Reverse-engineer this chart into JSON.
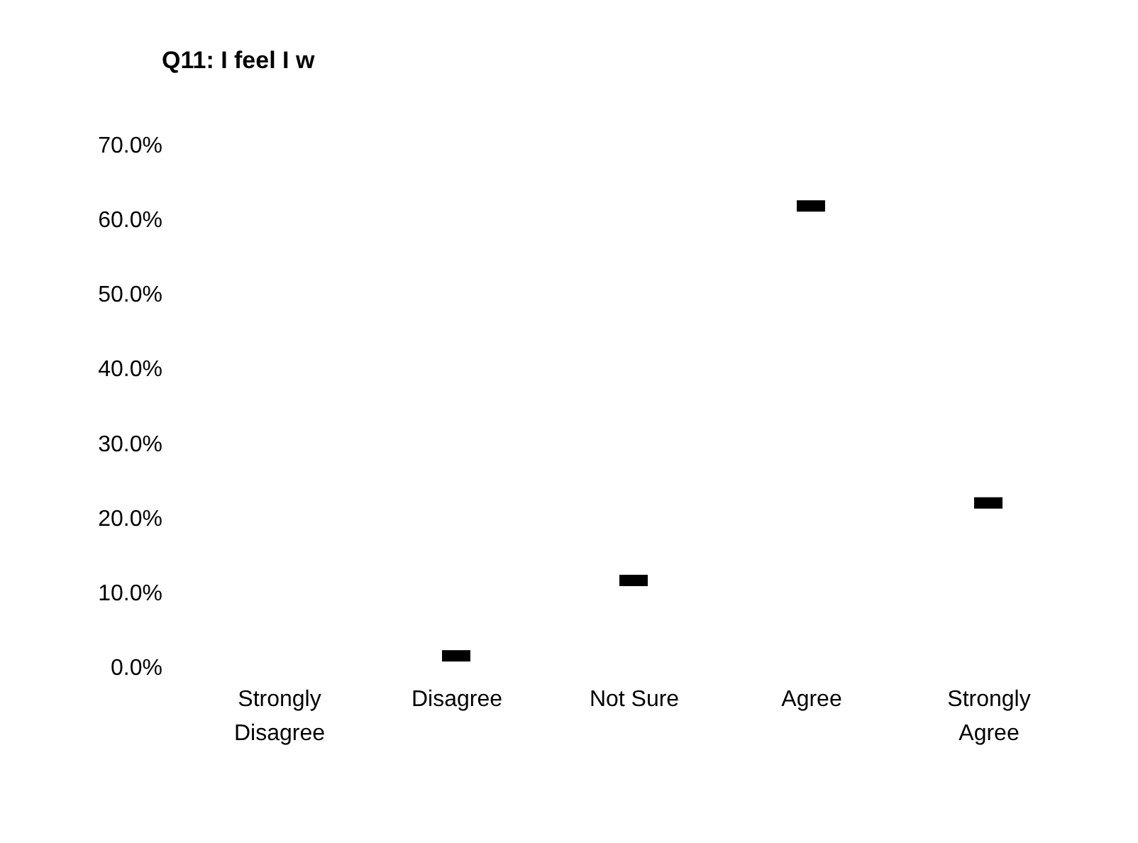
{
  "chart_data": {
    "type": "scatter",
    "title": "Q11: I feel I w",
    "categories": [
      "Strongly Disagree",
      "Disagree",
      "Not Sure",
      "Agree",
      "Strongly Agree"
    ],
    "series": [
      {
        "color": "#000000",
        "values": [
          null,
          1.5,
          11.6,
          61.8,
          22.0
        ]
      }
    ],
    "ylim": [
      0,
      70
    ],
    "yticks": [
      {
        "value": 0,
        "label": "0.0%"
      },
      {
        "value": 10,
        "label": "10.0%"
      },
      {
        "value": 20,
        "label": "20.0%"
      },
      {
        "value": 30,
        "label": "30.0%"
      },
      {
        "value": 40,
        "label": "40.0%"
      },
      {
        "value": 50,
        "label": "50.0%"
      },
      {
        "value": 60,
        "label": "60.0%"
      },
      {
        "value": 70,
        "label": "70.0%"
      }
    ],
    "grid": false
  }
}
